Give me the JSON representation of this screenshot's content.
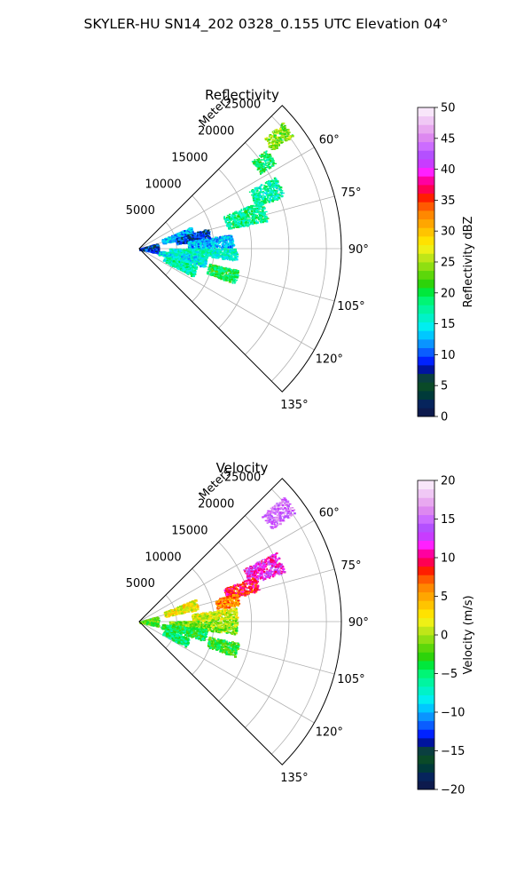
{
  "figure_title": "SKYLER-HU  SN14_202  0328_0.155 UTC Elevation 04°",
  "chart_data": [
    {
      "type": "polar-sector",
      "title": "Reflectivity",
      "range_axis_label": "Meters",
      "range_ticks": [
        5000,
        10000,
        15000,
        20000,
        25000
      ],
      "range_tick_labels": [
        "5000",
        "10000",
        "15000",
        "20000",
        "25000"
      ],
      "azimuth_ticks": [
        60,
        75,
        90,
        105,
        120,
        135
      ],
      "azimuth_tick_labels": [
        "60°",
        "75°",
        "90°",
        "105°",
        "120°",
        "135°"
      ],
      "azimuth_range": [
        45,
        135
      ],
      "range_limit": 27000,
      "grid": true,
      "colorbar": {
        "label": "Reflectivity dBZ",
        "min": 0,
        "max": 50,
        "ticks": [
          0,
          5,
          10,
          15,
          20,
          25,
          30,
          35,
          40,
          45,
          50
        ],
        "tick_labels": [
          "0",
          "5",
          "10",
          "15",
          "20",
          "25",
          "30",
          "35",
          "40",
          "45",
          "50"
        ],
        "colors": [
          "#0d1a4d",
          "#06245c",
          "#003a3a",
          "#0a4a28",
          "#0a3f40",
          "#00149e",
          "#0022ff",
          "#0a5dff",
          "#0a94ff",
          "#00c8ff",
          "#00eef0",
          "#00f2c8",
          "#00f5a0",
          "#00f575",
          "#00e83c",
          "#2dd30a",
          "#5cd70a",
          "#8fdf12",
          "#bfe618",
          "#eef016",
          "#ffe200",
          "#ffc400",
          "#ffa600",
          "#ff8800",
          "#ff5a00",
          "#ff1e00",
          "#ff0052",
          "#ff00a0",
          "#ff20ff",
          "#c83cff",
          "#b450ff",
          "#cc6cff",
          "#dd88f0",
          "#e8a8f0",
          "#f0c8f5",
          "#f8e6fa"
        ]
      },
      "echoes": [
        {
          "az": 51,
          "r": [
            22000,
            25500
          ],
          "w": 5,
          "value": 24
        },
        {
          "az": 55,
          "r": [
            19000,
            21500
          ],
          "w": 6,
          "value": 19
        },
        {
          "az": 66,
          "r": [
            16500,
            20500
          ],
          "w": 8,
          "value": 17
        },
        {
          "az": 73,
          "r": [
            12000,
            17500
          ],
          "w": 9,
          "value": 18
        },
        {
          "az": 72,
          "r": [
            3200,
            7500
          ],
          "w": 10,
          "value": 13
        },
        {
          "az": 78,
          "r": [
            5000,
            9500
          ],
          "w": 9,
          "value": 9
        },
        {
          "az": 85,
          "r": [
            6500,
            12500
          ],
          "w": 8,
          "value": 13
        },
        {
          "az": 93,
          "r": [
            4000,
            13000
          ],
          "w": 7,
          "value": 16
        },
        {
          "az": 101,
          "r": [
            2500,
            9000
          ],
          "w": 10,
          "value": 15
        },
        {
          "az": 106,
          "r": [
            9500,
            13500
          ],
          "w": 8,
          "value": 20
        },
        {
          "az": 88,
          "r": [
            0,
            2500
          ],
          "w": 30,
          "value": 9
        },
        {
          "az": 112,
          "r": [
            3500,
            8000
          ],
          "w": 10,
          "value": 17
        }
      ]
    },
    {
      "type": "polar-sector",
      "title": "Velocity",
      "range_axis_label": "Meters",
      "range_ticks": [
        5000,
        10000,
        15000,
        20000,
        25000
      ],
      "range_tick_labels": [
        "5000",
        "10000",
        "15000",
        "20000",
        "25000"
      ],
      "azimuth_ticks": [
        60,
        75,
        90,
        105,
        120,
        135
      ],
      "azimuth_tick_labels": [
        "60°",
        "75°",
        "90°",
        "105°",
        "120°",
        "135°"
      ],
      "azimuth_range": [
        45,
        135
      ],
      "range_limit": 27000,
      "grid": true,
      "colorbar": {
        "label": "Velocity (m/s)",
        "min": -20,
        "max": 20,
        "ticks": [
          -20,
          -15,
          -10,
          -5,
          0,
          5,
          10,
          15,
          20
        ],
        "tick_labels": [
          "−20",
          "−15",
          "−10",
          "−5",
          "0",
          "5",
          "10",
          "15",
          "20"
        ],
        "colors": [
          "#0d1a4d",
          "#06245c",
          "#003a3a",
          "#0a4a28",
          "#0a3f40",
          "#00149e",
          "#0022ff",
          "#0a5dff",
          "#0a94ff",
          "#00c8ff",
          "#00eef0",
          "#00f2c8",
          "#00f5a0",
          "#00f575",
          "#00e83c",
          "#2dd30a",
          "#5cd70a",
          "#8fdf12",
          "#bfe618",
          "#eef016",
          "#ffe200",
          "#ffc400",
          "#ffa600",
          "#ff8800",
          "#ff5a00",
          "#ff1e00",
          "#ff0052",
          "#ff00a0",
          "#ff20ff",
          "#c83cff",
          "#b450ff",
          "#cc6cff",
          "#dd88f0",
          "#e8a8f0",
          "#f0c8f5",
          "#f8e6fa"
        ]
      },
      "echoes": [
        {
          "az": 52,
          "r": [
            21500,
            25500
          ],
          "w": 6,
          "value": 15
        },
        {
          "az": 67,
          "r": [
            15500,
            20500
          ],
          "w": 8,
          "value": 12
        },
        {
          "az": 72,
          "r": [
            12000,
            16500
          ],
          "w": 7,
          "value": 9
        },
        {
          "az": 77,
          "r": [
            10500,
            13500
          ],
          "w": 7,
          "value": 6
        },
        {
          "az": 73,
          "r": [
            3500,
            8000
          ],
          "w": 10,
          "value": 2
        },
        {
          "az": 85,
          "r": [
            7000,
            13000
          ],
          "w": 7,
          "value": 1
        },
        {
          "az": 93,
          "r": [
            4000,
            13000
          ],
          "w": 8,
          "value": -1
        },
        {
          "az": 101,
          "r": [
            3000,
            9000
          ],
          "w": 10,
          "value": -4
        },
        {
          "az": 106,
          "r": [
            9500,
            13500
          ],
          "w": 8,
          "value": -3
        },
        {
          "az": 88,
          "r": [
            0,
            2500
          ],
          "w": 30,
          "value": -2
        },
        {
          "az": 113,
          "r": [
            3500,
            7000
          ],
          "w": 10,
          "value": -5
        }
      ]
    }
  ]
}
